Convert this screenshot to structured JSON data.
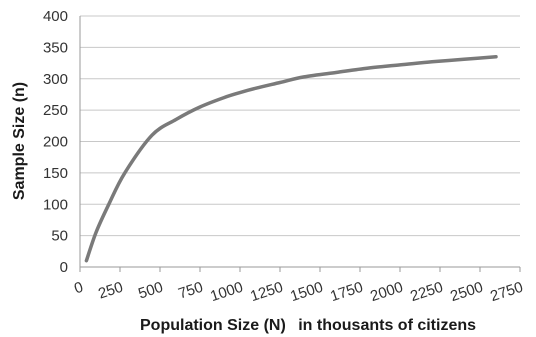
{
  "chart_data": {
    "type": "line",
    "title": "",
    "ylabel": "Sample Size (n)",
    "xlabel_main": "Population Size (N)",
    "xlabel_suffix": "in thousants of citizens",
    "xlim": [
      0,
      2750
    ],
    "ylim": [
      0,
      400
    ],
    "xticks": [
      0,
      250,
      500,
      750,
      1000,
      1250,
      1500,
      1750,
      2000,
      2250,
      2500,
      2750
    ],
    "yticks": [
      0,
      50,
      100,
      150,
      200,
      250,
      300,
      350,
      400
    ],
    "grid": true,
    "series": [
      {
        "color": "#7a7a7a",
        "x": [
          40,
          100,
          180,
          280,
          450,
          600,
          750,
          900,
          1000,
          1100,
          1250,
          1400,
          1600,
          1800,
          2000,
          2200,
          2400,
          2600
        ],
        "y": [
          10,
          55,
          100,
          150,
          210,
          235,
          255,
          270,
          278,
          285,
          294,
          303,
          310,
          317,
          322,
          327,
          331,
          335
        ]
      }
    ]
  }
}
